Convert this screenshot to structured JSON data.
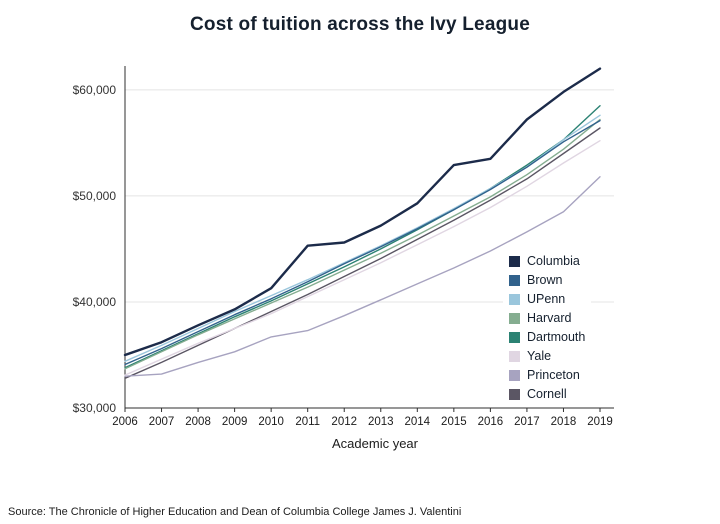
{
  "source": "Source: The Chronicle of Higher Education and Dean of Columbia College James J. Valentini",
  "chart_data": {
    "type": "line",
    "title": "Cost of tuition across the Ivy League",
    "xlabel": "Academic year",
    "ylabel": "",
    "x": [
      2006,
      2007,
      2008,
      2009,
      2010,
      2011,
      2012,
      2013,
      2014,
      2015,
      2016,
      2017,
      2018,
      2019
    ],
    "ylim": [
      30000,
      63000
    ],
    "yticks": {
      "values": [
        30000,
        40000,
        50000,
        60000
      ],
      "labels": [
        "$30,000",
        "$40,000",
        "$50,000",
        "$60,000"
      ]
    },
    "grid": "horizontal",
    "legend_position": "inside-right",
    "series": [
      {
        "name": "Columbia",
        "color": "#1c2b4a",
        "values": [
          35000,
          36200,
          37800,
          39300,
          41300,
          45300,
          45600,
          47200,
          49300,
          52900,
          53500,
          57200,
          59800,
          62000
        ]
      },
      {
        "name": "Brown",
        "color": "#31628c",
        "values": [
          34100,
          35600,
          37200,
          38800,
          40300,
          41900,
          43600,
          45200,
          46900,
          48700,
          50600,
          52700,
          55100,
          57100
        ]
      },
      {
        "name": "UPenn",
        "color": "#9ac6dc",
        "values": [
          34400,
          35900,
          37500,
          39100,
          40600,
          42100,
          43700,
          45300,
          47000,
          48800,
          50700,
          52700,
          55300,
          57600
        ]
      },
      {
        "name": "Harvard",
        "color": "#85ad90",
        "values": [
          33700,
          35300,
          36900,
          38400,
          39900,
          41400,
          43000,
          44600,
          46300,
          48100,
          49900,
          52000,
          54400,
          57200
        ]
      },
      {
        "name": "Dartmouth",
        "color": "#2b8273",
        "values": [
          33800,
          35400,
          37000,
          38600,
          40100,
          41700,
          43300,
          45000,
          46800,
          48700,
          50700,
          52900,
          55300,
          58500
        ]
      },
      {
        "name": "Yale",
        "color": "#e0d6e2",
        "values": [
          33100,
          34600,
          36100,
          37500,
          38900,
          40500,
          42100,
          43700,
          45400,
          47100,
          48900,
          50900,
          53100,
          55200
        ]
      },
      {
        "name": "Princeton",
        "color": "#a7a3c0",
        "values": [
          33000,
          33200,
          34300,
          35300,
          36700,
          37300,
          38700,
          40200,
          41700,
          43200,
          44800,
          46600,
          48500,
          51800
        ]
      },
      {
        "name": "Cornell",
        "color": "#5b5664",
        "values": [
          32800,
          34300,
          35900,
          37500,
          39100,
          40700,
          42400,
          44100,
          45900,
          47700,
          49600,
          51600,
          54000,
          56400
        ]
      }
    ]
  }
}
